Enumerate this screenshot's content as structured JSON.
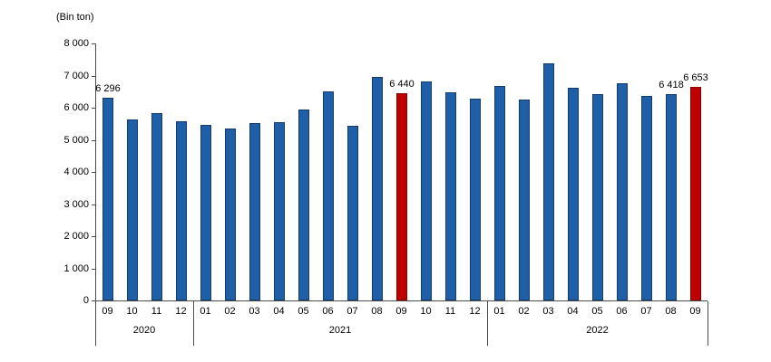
{
  "chart_data": {
    "type": "bar",
    "unit_label": "(Bin ton)",
    "ylim": [
      0,
      8000
    ],
    "ytick_step": 1000,
    "ytick_labels": [
      "0",
      "1 000",
      "2 000",
      "3 000",
      "4 000",
      "5 000",
      "6 000",
      "7 000",
      "8 000"
    ],
    "categories": [
      "09",
      "10",
      "11",
      "12",
      "01",
      "02",
      "03",
      "04",
      "05",
      "06",
      "07",
      "08",
      "09",
      "10",
      "11",
      "12",
      "01",
      "02",
      "03",
      "04",
      "05",
      "06",
      "07",
      "08",
      "09"
    ],
    "values": [
      6296,
      5630,
      5840,
      5580,
      5460,
      5350,
      5510,
      5540,
      5930,
      6510,
      5450,
      6950,
      6440,
      6830,
      6490,
      6290,
      6690,
      6240,
      7390,
      6620,
      6410,
      6760,
      6370,
      6418,
      6653
    ],
    "year_groups": [
      {
        "label": "2020",
        "count": 4
      },
      {
        "label": "2021",
        "count": 12
      },
      {
        "label": "2022",
        "count": 9
      }
    ],
    "highlighted_indices": [
      12,
      24
    ],
    "data_labels": [
      {
        "index": 0,
        "text": "6 296"
      },
      {
        "index": 12,
        "text": "6 440"
      },
      {
        "index": 23,
        "text": "6 418"
      },
      {
        "index": 24,
        "text": "6 653"
      }
    ],
    "colors": {
      "bar_fill": "#1F5FA8",
      "bar_border": "#143C6B",
      "highlight_fill": "#C00000",
      "highlight_border": "#8A0000",
      "axis": "#4D4D4D",
      "text": "#000000"
    },
    "grid": false,
    "legend": null
  }
}
